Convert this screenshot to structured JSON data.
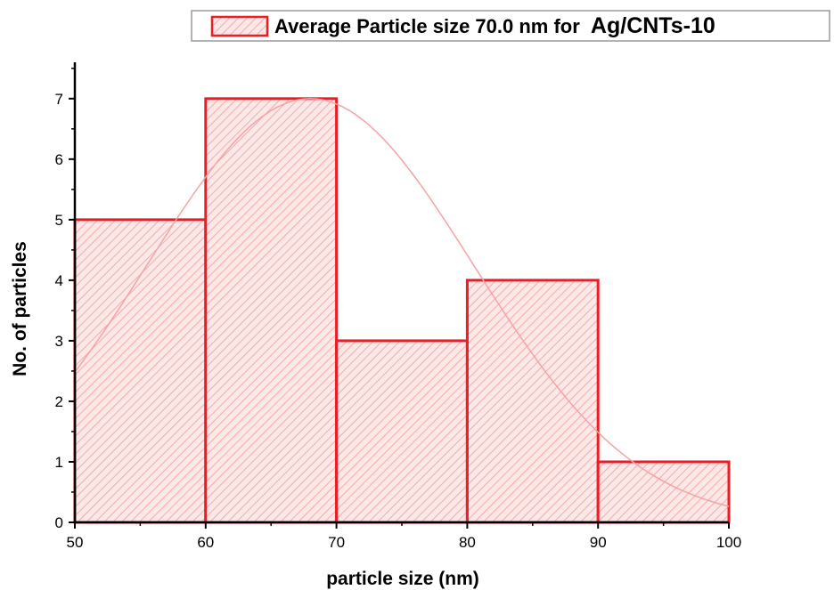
{
  "chart_data": {
    "type": "bar",
    "title": "",
    "xlabel": "particle size (nm)",
    "ylabel": "No. of particles",
    "bins": [
      {
        "x0": 50,
        "x1": 60,
        "count": 5
      },
      {
        "x0": 60,
        "x1": 70,
        "count": 7
      },
      {
        "x0": 70,
        "x1": 80,
        "count": 3
      },
      {
        "x0": 80,
        "x1": 90,
        "count": 4
      },
      {
        "x0": 90,
        "x1": 100,
        "count": 1
      }
    ],
    "xlim": [
      50,
      100
    ],
    "ylim": [
      0,
      7.6
    ],
    "x_ticks": [
      50,
      60,
      70,
      80,
      90,
      100
    ],
    "y_ticks": [
      0,
      1,
      2,
      3,
      4,
      5,
      6,
      7
    ],
    "fit": {
      "type": "gaussian",
      "mean": 68,
      "peak": 7.0,
      "sigma": 12.5
    },
    "legend": {
      "position": "top-right",
      "text": "Average Particle size 70.0 nm for",
      "text_bold": "Ag/CNTs-10"
    },
    "grid": false,
    "colors": {
      "bar_edge": "#ee1c24",
      "hatch": "#f29a9a",
      "fill": "#fde8e8",
      "fit_line": "#f5a3a3"
    }
  }
}
